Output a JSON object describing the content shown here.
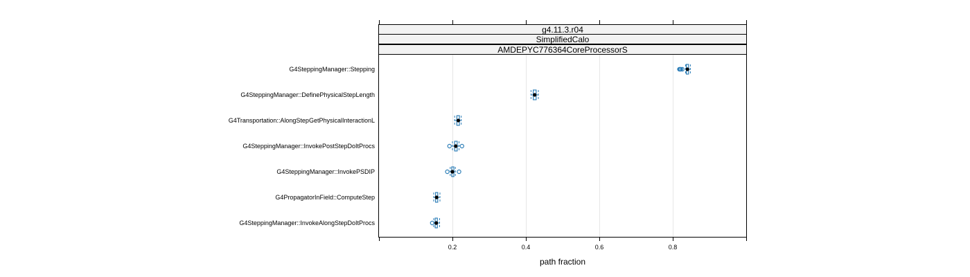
{
  "chart_data": {
    "type": "boxplot",
    "strips": [
      "g4.11.3.r04",
      "SimplifiedCalo",
      "AMDEPYC776364CoreProcessorS"
    ],
    "xlabel": "path fraction",
    "xlim": [
      0,
      1
    ],
    "xticks": [
      0.2,
      0.4,
      0.6,
      0.8
    ],
    "xtick_labels": [
      "0.2",
      "0.4",
      "0.6",
      "0.8"
    ],
    "grid": true,
    "colors": {
      "box": "#2e7fb8",
      "median_dot": "#000000",
      "grid": "#e6e6e6",
      "strip_bg": "#f2f2f2"
    },
    "categories": [
      {
        "label": "G4SteppingManager::Stepping",
        "min": 0.835,
        "q1": 0.837,
        "median": 0.84,
        "q3": 0.843,
        "max": 0.848,
        "outliers": [
          0.818,
          0.82,
          0.822,
          0.826
        ]
      },
      {
        "label": "G4SteppingManager::DefinePhysicalStepLength",
        "min": 0.414,
        "q1": 0.42,
        "median": 0.424,
        "q3": 0.428,
        "max": 0.434,
        "outliers": []
      },
      {
        "label": "G4Transportation::AlongStepGetPhysicalInteractionL",
        "min": 0.206,
        "q1": 0.212,
        "median": 0.216,
        "q3": 0.219,
        "max": 0.224,
        "outliers": []
      },
      {
        "label": "G4SteppingManager::InvokePostStepDoItProcs",
        "min": 0.2,
        "q1": 0.206,
        "median": 0.209,
        "q3": 0.213,
        "max": 0.218,
        "outliers": [
          0.192,
          0.226
        ]
      },
      {
        "label": "G4SteppingManager::InvokePSDIP",
        "min": 0.194,
        "q1": 0.198,
        "median": 0.2,
        "q3": 0.204,
        "max": 0.208,
        "outliers": [
          0.186,
          0.218
        ]
      },
      {
        "label": "G4PropagatorInField::ComputeStep",
        "min": 0.149,
        "q1": 0.154,
        "median": 0.157,
        "q3": 0.16,
        "max": 0.166,
        "outliers": []
      },
      {
        "label": "G4SteppingManager::InvokeAlongStepDoItProcs",
        "min": 0.149,
        "q1": 0.153,
        "median": 0.156,
        "q3": 0.159,
        "max": 0.165,
        "outliers": [
          0.145
        ]
      }
    ]
  }
}
